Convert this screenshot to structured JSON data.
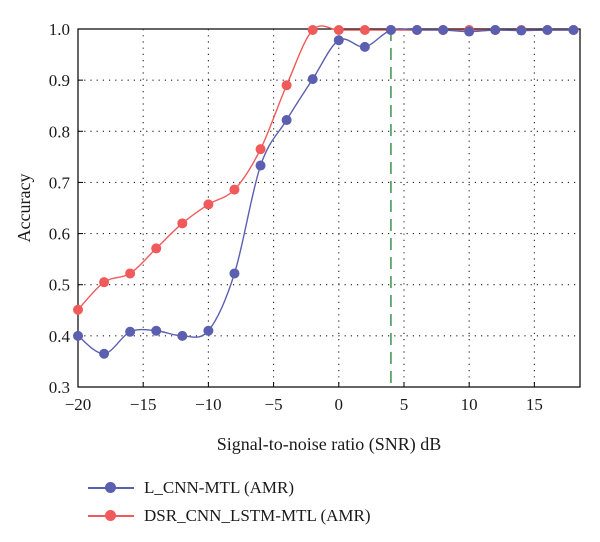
{
  "chart_data": {
    "type": "line",
    "xlabel": "Signal-to-noise ratio (SNR) dB",
    "ylabel": "Accuracy",
    "xlim": [
      -20,
      18.5
    ],
    "ylim": [
      0.3,
      1.0
    ],
    "xticks": [
      -20,
      -15,
      -10,
      -5,
      0,
      5,
      10,
      15
    ],
    "xtick_labels": [
      "−20",
      "−15",
      "−10",
      "−5",
      "0",
      "5",
      "10",
      "15"
    ],
    "yticks": [
      0.3,
      0.4,
      0.5,
      0.6,
      0.7,
      0.8,
      0.9,
      1.0
    ],
    "ytick_labels": [
      "0.3",
      "0.4",
      "0.5",
      "0.6",
      "0.7",
      "0.8",
      "0.9",
      "1.0"
    ],
    "grid": "dotted",
    "vline": {
      "x": 4,
      "color": "#2e8b3e",
      "style": "dashed"
    },
    "x": [
      -20,
      -18,
      -16,
      -14,
      -12,
      -10,
      -8,
      -6,
      -4,
      -2,
      0,
      2,
      4,
      6,
      8,
      10,
      12,
      14,
      16,
      18
    ],
    "series": [
      {
        "name": "L_CNN-MTL (AMR)",
        "color": "#5b5fb0",
        "values": [
          0.4,
          0.365,
          0.408,
          0.41,
          0.4,
          0.41,
          0.522,
          0.733,
          0.822,
          0.902,
          0.978,
          0.965,
          0.998,
          0.998,
          0.998,
          0.995,
          0.998,
          0.997,
          0.998,
          0.998
        ]
      },
      {
        "name": "DSR_CNN_LSTM-MTL (AMR)",
        "color": "#f05a5a",
        "values": [
          0.451,
          0.505,
          0.522,
          0.571,
          0.62,
          0.657,
          0.686,
          0.765,
          0.89,
          0.998,
          0.998,
          0.998,
          0.998,
          0.998,
          0.998,
          0.998,
          0.998,
          0.998,
          0.998,
          0.998
        ]
      }
    ],
    "legend_position": "bottom-left"
  }
}
